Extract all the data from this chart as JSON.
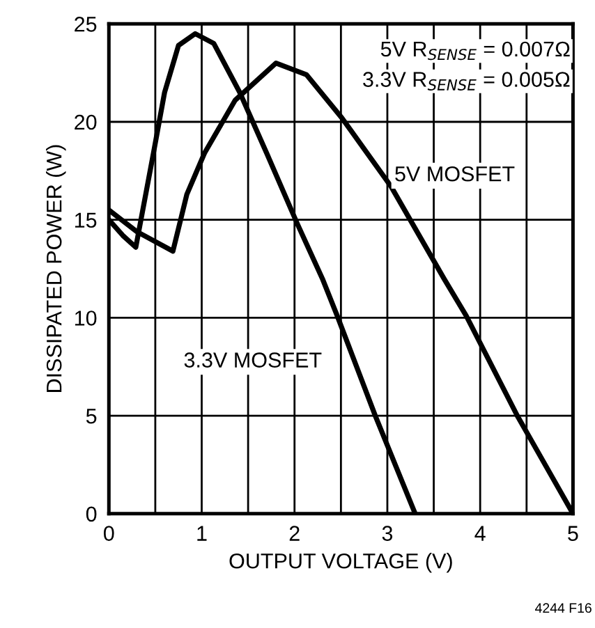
{
  "chart_data": {
    "type": "line",
    "xlabel": "OUTPUT VOLTAGE (V)",
    "ylabel": "DISSIPATED POWER (W)",
    "xlim": [
      0,
      5
    ],
    "ylim": [
      0,
      25
    ],
    "xticks": [
      0,
      {
        "value": 0.5,
        "label": null
      },
      1,
      {
        "value": 1.5,
        "label": null
      },
      2,
      {
        "value": 2.5,
        "label": null
      },
      3,
      {
        "value": 3.5,
        "label": null
      },
      4,
      {
        "value": 4.5,
        "label": null
      },
      5
    ],
    "yticks": [
      0,
      5,
      10,
      15,
      20,
      25
    ],
    "grid": true,
    "series": [
      {
        "name": "5V MOSFET",
        "color": "#000000",
        "x": [
          0,
          0.3,
          0.69,
          0.84,
          1.03,
          1.36,
          1.8,
          2.13,
          2.51,
          3.04,
          3.61,
          3.85,
          4.4,
          5.0
        ],
        "values": [
          15.5,
          14.4,
          13.4,
          16.3,
          18.4,
          21.1,
          23.0,
          22.4,
          20.2,
          16.7,
          12.0,
          10.1,
          5.0,
          0
        ]
      },
      {
        "name": "3.3V MOSFET",
        "color": "#000000",
        "x": [
          0,
          0.15,
          0.29,
          0.48,
          0.6,
          0.75,
          0.93,
          1.13,
          1.41,
          1.7,
          2.03,
          2.3,
          2.46,
          2.87,
          3.3
        ],
        "values": [
          15.0,
          14.2,
          13.6,
          18.4,
          21.5,
          23.9,
          24.5,
          24.0,
          21.5,
          18.4,
          14.8,
          12.0,
          10.1,
          5.0,
          0
        ]
      }
    ],
    "annotations": [
      "5V R$_{SENSE}$ = 0.007Ω",
      "3.3V R$_{SENSE}$ = 0.005Ω",
      "4244 F16"
    ]
  }
}
